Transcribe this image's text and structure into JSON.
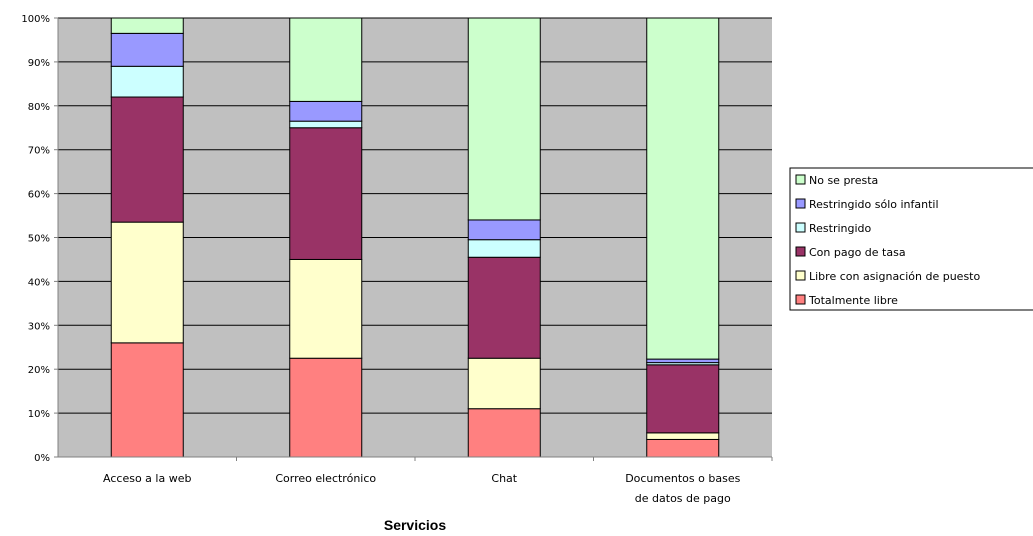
{
  "chart_data": {
    "type": "bar",
    "stacked": true,
    "percent_stacked": true,
    "xlabel": "Servicios",
    "ylabel": "",
    "ylim": [
      0,
      100
    ],
    "y_ticks": [
      "0%",
      "10%",
      "20%",
      "30%",
      "40%",
      "50%",
      "60%",
      "70%",
      "80%",
      "90%",
      "100%"
    ],
    "grid": true,
    "legend_position": "right",
    "categories": [
      [
        "Acceso a la web"
      ],
      [
        "Correo electrónico"
      ],
      [
        "Chat"
      ],
      [
        "Documentos o bases",
        "de datos de pago"
      ]
    ],
    "series": [
      {
        "name": "Totalmente libre",
        "color": "#ff8080",
        "values": [
          26,
          22.5,
          11,
          4
        ]
      },
      {
        "name": "Libre con asignación de puesto",
        "color": "#ffffcc",
        "values": [
          27.5,
          22.5,
          11.5,
          1.5
        ]
      },
      {
        "name": "Con pago de tasa",
        "color": "#993366",
        "values": [
          28.5,
          30,
          23,
          15.5
        ]
      },
      {
        "name": "Restringido",
        "color": "#ccffff",
        "values": [
          7,
          1.5,
          4,
          0.5
        ]
      },
      {
        "name": "Restringido sólo infantil",
        "color": "#9999ff",
        "values": [
          7.5,
          4.5,
          4.5,
          0.8
        ]
      },
      {
        "name": "No se presta",
        "color": "#ccffcc",
        "values": [
          3.5,
          19,
          46,
          77.7
        ]
      }
    ]
  }
}
